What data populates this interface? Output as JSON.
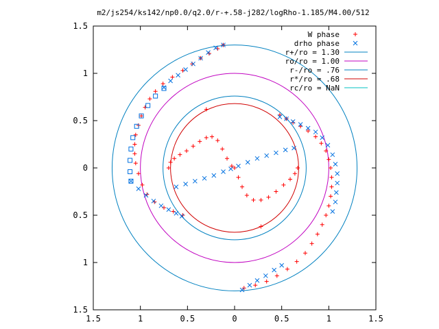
{
  "chart_data": {
    "type": "scatter",
    "title": "m2/js254/ks142/np0.0/q2.0/r-+.58-j282/logRho-1.185/M4.00/512",
    "xlabel": "",
    "ylabel": "",
    "xlim": [
      -1.5,
      1.5
    ],
    "ylim": [
      -1.5,
      1.5
    ],
    "x_ticks": [
      -1.5,
      -1,
      -0.5,
      0,
      0.5,
      1,
      1.5
    ],
    "x_tick_labels": [
      "1.5",
      "1",
      "0.5",
      "0",
      "0.5",
      "1",
      "1.5"
    ],
    "y_ticks": [
      -1.5,
      -1,
      -0.5,
      0,
      0.5,
      1,
      1.5
    ],
    "y_tick_labels": [
      "1.5",
      "1",
      "0.5",
      "0",
      "0.5",
      "1",
      "1.5"
    ],
    "grid": false,
    "legend_position": "top-right",
    "circles": [
      {
        "label": "r+/ro = 1.30",
        "radius": 1.3,
        "color": "#0080c0"
      },
      {
        "label": "ro/ro = 1.00",
        "radius": 1.0,
        "color": "#c000c0"
      },
      {
        "label": "r-/ro = .76",
        "radius": 0.76,
        "color": "#0080c0"
      },
      {
        "label": "r*/ro = .68",
        "radius": 0.68,
        "color": "#d00000"
      },
      {
        "label": "rc/ro = NaN",
        "radius": null,
        "color": "#00c0c0"
      }
    ],
    "series": [
      {
        "name": "W phase",
        "marker": "plus",
        "color": "#ff0000",
        "points": [
          [
            -0.55,
            -0.5
          ],
          [
            -0.65,
            -0.46
          ],
          [
            -0.75,
            -0.42
          ],
          [
            -0.85,
            -0.36
          ],
          [
            -0.93,
            -0.28
          ],
          [
            -0.98,
            -0.18
          ],
          [
            -1.02,
            -0.06
          ],
          [
            -1.05,
            0.05
          ],
          [
            -1.06,
            0.15
          ],
          [
            -1.06,
            0.25
          ],
          [
            -1.05,
            0.35
          ],
          [
            -1.02,
            0.45
          ],
          [
            -0.99,
            0.55
          ],
          [
            -0.95,
            0.64
          ],
          [
            -0.9,
            0.73
          ],
          [
            -0.84,
            0.81
          ],
          [
            -0.76,
            0.89
          ],
          [
            -0.66,
            0.96
          ],
          [
            -0.55,
            1.03
          ],
          [
            -0.45,
            1.1
          ],
          [
            -0.36,
            1.16
          ],
          [
            -0.27,
            1.21
          ],
          [
            -0.18,
            1.26
          ],
          [
            -0.12,
            1.3
          ],
          [
            0.48,
            0.56
          ],
          [
            0.55,
            0.52
          ],
          [
            0.62,
            0.48
          ],
          [
            0.7,
            0.44
          ],
          [
            0.78,
            0.39
          ],
          [
            0.86,
            0.33
          ],
          [
            0.92,
            0.26
          ],
          [
            0.97,
            0.18
          ],
          [
            1.0,
            0.09
          ],
          [
            1.02,
            0.0
          ],
          [
            1.03,
            -0.1
          ],
          [
            1.03,
            -0.2
          ],
          [
            1.02,
            -0.3
          ],
          [
            1.0,
            -0.4
          ],
          [
            0.97,
            -0.5
          ],
          [
            0.93,
            -0.6
          ],
          [
            0.88,
            -0.7
          ],
          [
            0.82,
            -0.8
          ],
          [
            0.75,
            -0.9
          ],
          [
            0.66,
            -0.99
          ],
          [
            0.56,
            -1.07
          ],
          [
            0.45,
            -1.14
          ],
          [
            0.34,
            -1.2
          ],
          [
            0.22,
            -1.24
          ],
          [
            0.1,
            -1.27
          ],
          [
            -0.7,
            0.0
          ],
          [
            -0.68,
            0.06
          ],
          [
            -0.64,
            0.1
          ],
          [
            -0.58,
            0.14
          ],
          [
            -0.51,
            0.18
          ],
          [
            -0.44,
            0.23
          ],
          [
            -0.37,
            0.28
          ],
          [
            -0.3,
            0.32
          ],
          [
            -0.24,
            0.33
          ],
          [
            -0.18,
            0.29
          ],
          [
            -0.13,
            0.2
          ],
          [
            -0.08,
            0.1
          ],
          [
            -0.03,
            0.02
          ],
          [
            0.0,
            0.0
          ],
          [
            0.04,
            -0.1
          ],
          [
            0.08,
            -0.2
          ],
          [
            0.13,
            -0.29
          ],
          [
            0.2,
            -0.34
          ],
          [
            0.28,
            -0.34
          ],
          [
            0.36,
            -0.31
          ],
          [
            0.44,
            -0.25
          ],
          [
            0.52,
            -0.18
          ],
          [
            0.59,
            -0.12
          ],
          [
            0.64,
            -0.06
          ],
          [
            0.67,
            0.0
          ],
          [
            -0.3,
            0.62
          ],
          [
            0.28,
            -0.62
          ]
        ]
      },
      {
        "name": "drho phase",
        "marker": "cross",
        "color": "#0070e0",
        "points": [
          [
            -0.12,
            1.3
          ],
          [
            -0.2,
            1.27
          ],
          [
            -0.28,
            1.22
          ],
          [
            -0.36,
            1.16
          ],
          [
            -0.44,
            1.1
          ],
          [
            -0.52,
            1.04
          ],
          [
            -0.6,
            0.98
          ],
          [
            -0.68,
            0.92
          ],
          [
            -0.75,
            0.85
          ],
          [
            0.48,
            0.54
          ],
          [
            0.55,
            0.52
          ],
          [
            0.62,
            0.49
          ],
          [
            0.7,
            0.46
          ],
          [
            0.78,
            0.42
          ],
          [
            0.86,
            0.38
          ],
          [
            0.93,
            0.32
          ],
          [
            0.99,
            0.24
          ],
          [
            1.04,
            0.14
          ],
          [
            1.07,
            0.04
          ],
          [
            1.09,
            -0.06
          ],
          [
            1.09,
            -0.16
          ],
          [
            1.08,
            -0.26
          ],
          [
            1.07,
            -0.36
          ],
          [
            1.04,
            -0.46
          ],
          [
            -0.62,
            -0.2
          ],
          [
            -0.52,
            -0.17
          ],
          [
            -0.42,
            -0.14
          ],
          [
            -0.32,
            -0.11
          ],
          [
            -0.22,
            -0.08
          ],
          [
            -0.12,
            -0.04
          ],
          [
            -0.04,
            -0.01
          ],
          [
            0.04,
            0.02
          ],
          [
            0.14,
            0.06
          ],
          [
            0.24,
            0.1
          ],
          [
            0.34,
            0.13
          ],
          [
            0.44,
            0.16
          ],
          [
            0.54,
            0.19
          ],
          [
            0.63,
            0.21
          ],
          [
            -1.1,
            -0.14
          ],
          [
            -1.02,
            -0.22
          ],
          [
            -0.94,
            -0.29
          ],
          [
            -0.86,
            -0.35
          ],
          [
            -0.78,
            -0.4
          ],
          [
            -0.7,
            -0.44
          ],
          [
            -0.62,
            -0.48
          ],
          [
            -0.56,
            -0.51
          ],
          [
            0.08,
            -1.29
          ],
          [
            0.16,
            -1.24
          ],
          [
            0.24,
            -1.19
          ],
          [
            0.33,
            -1.14
          ],
          [
            0.42,
            -1.08
          ],
          [
            0.5,
            -1.03
          ]
        ]
      },
      {
        "name": "",
        "marker": "square",
        "color": "#0070e0",
        "points": [
          [
            -0.75,
            0.84
          ],
          [
            -0.84,
            0.76
          ],
          [
            -0.92,
            0.66
          ],
          [
            -0.99,
            0.55
          ],
          [
            -1.04,
            0.44
          ],
          [
            -1.08,
            0.32
          ],
          [
            -1.1,
            0.2
          ],
          [
            -1.11,
            0.08
          ],
          [
            -1.11,
            -0.04
          ],
          [
            -1.1,
            -0.14
          ]
        ]
      }
    ]
  }
}
